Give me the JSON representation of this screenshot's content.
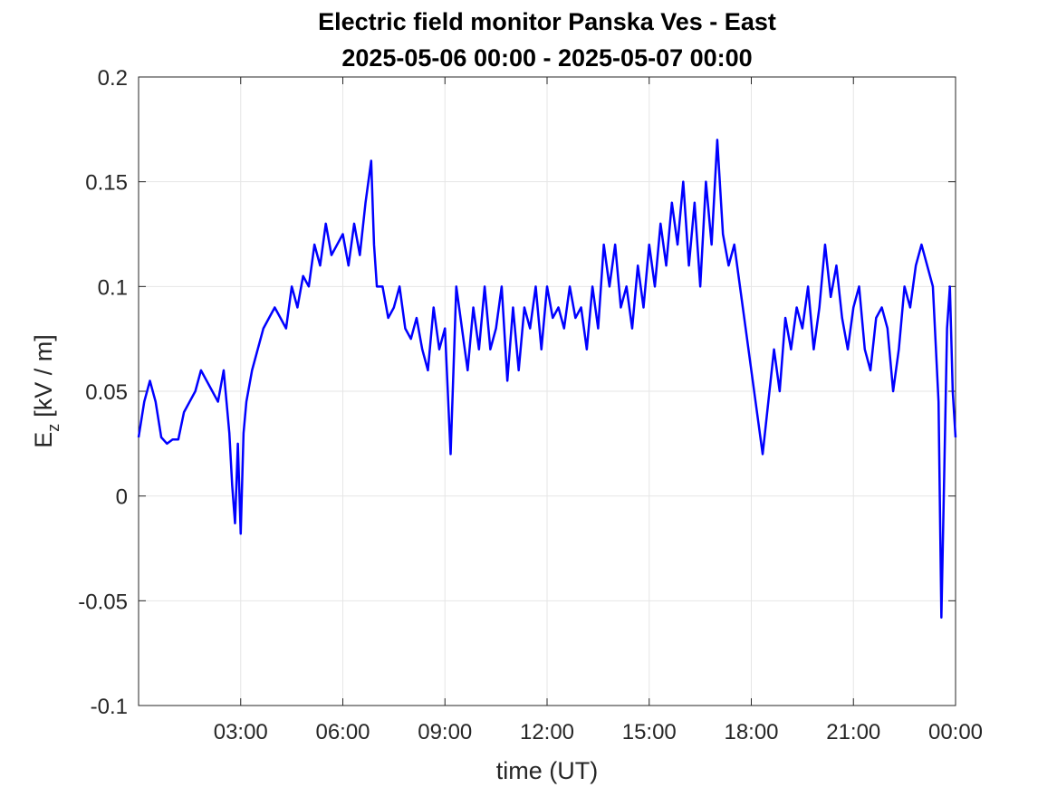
{
  "chart_data": {
    "type": "line",
    "title": "Electric field monitor Panska Ves - East",
    "subtitle": "2025-05-06 00:00 - 2025-05-07 00:00",
    "xlabel": "time (UT)",
    "ylabel": "E",
    "ylabel_sub": "z",
    "ylabel_unit": "[kV / m]",
    "xlim": [
      "2025-05-06 00:00",
      "2025-05-07 00:00"
    ],
    "ylim": [
      -0.1,
      0.2
    ],
    "grid": true,
    "line_color": "#0000ff",
    "xtick_labels": [
      "03:00",
      "06:00",
      "09:00",
      "12:00",
      "15:00",
      "18:00",
      "21:00",
      "00:00"
    ],
    "ytick_labels": [
      "-0.1",
      "-0.05",
      "0",
      "0.05",
      "0.1",
      "0.15",
      "0.2"
    ],
    "ytick_values": [
      -0.1,
      -0.05,
      0,
      0.05,
      0.1,
      0.15,
      0.2
    ],
    "series": [
      {
        "x": [
          "00:00",
          "00:10",
          "00:20",
          "00:30",
          "00:40",
          "00:50",
          "01:00",
          "01:10",
          "01:20",
          "01:30",
          "01:40",
          "01:50",
          "02:00",
          "02:10",
          "02:20",
          "02:30",
          "02:35",
          "02:40",
          "02:45",
          "02:50",
          "02:55",
          "03:00",
          "03:05",
          "03:10",
          "03:20",
          "03:30",
          "03:40",
          "03:50",
          "04:00",
          "04:10",
          "04:20",
          "04:30",
          "04:40",
          "04:50",
          "05:00",
          "05:10",
          "05:20",
          "05:30",
          "05:40",
          "05:50",
          "06:00",
          "06:10",
          "06:20",
          "06:30",
          "06:40",
          "06:50",
          "06:55",
          "07:00",
          "07:10",
          "07:20",
          "07:30",
          "07:40",
          "07:50",
          "08:00",
          "08:10",
          "08:20",
          "08:30",
          "08:40",
          "08:50",
          "09:00",
          "09:10",
          "09:20",
          "09:30",
          "09:40",
          "09:50",
          "10:00",
          "10:10",
          "10:20",
          "10:30",
          "10:40",
          "10:50",
          "11:00",
          "11:10",
          "11:20",
          "11:30",
          "11:40",
          "11:50",
          "12:00",
          "12:10",
          "12:20",
          "12:30",
          "12:40",
          "12:50",
          "13:00",
          "13:10",
          "13:20",
          "13:30",
          "13:40",
          "13:50",
          "14:00",
          "14:10",
          "14:20",
          "14:30",
          "14:40",
          "14:50",
          "15:00",
          "15:10",
          "15:20",
          "15:30",
          "15:40",
          "15:50",
          "16:00",
          "16:10",
          "16:20",
          "16:30",
          "16:40",
          "16:50",
          "17:00",
          "17:10",
          "17:20",
          "17:30",
          "17:40",
          "17:50",
          "18:00",
          "18:10",
          "18:20",
          "18:30",
          "18:40",
          "18:50",
          "19:00",
          "19:10",
          "19:20",
          "19:30",
          "19:40",
          "19:50",
          "20:00",
          "20:10",
          "20:20",
          "20:30",
          "20:40",
          "20:50",
          "21:00",
          "21:10",
          "21:20",
          "21:30",
          "21:40",
          "21:50",
          "22:00",
          "22:10",
          "22:20",
          "22:30",
          "22:40",
          "22:50",
          "23:00",
          "23:10",
          "23:20",
          "23:30",
          "23:35",
          "23:40",
          "23:45",
          "23:50",
          "23:55",
          "24:00"
        ],
        "values": [
          0.028,
          0.045,
          0.055,
          0.045,
          0.028,
          0.025,
          0.027,
          0.027,
          0.04,
          0.045,
          0.05,
          0.06,
          0.055,
          0.05,
          0.045,
          0.06,
          0.045,
          0.03,
          0.005,
          -0.013,
          0.025,
          -0.018,
          0.03,
          0.045,
          0.06,
          0.07,
          0.08,
          0.085,
          0.09,
          0.085,
          0.08,
          0.1,
          0.09,
          0.105,
          0.1,
          0.12,
          0.11,
          0.13,
          0.115,
          0.12,
          0.125,
          0.11,
          0.13,
          0.115,
          0.14,
          0.16,
          0.12,
          0.1,
          0.1,
          0.085,
          0.09,
          0.1,
          0.08,
          0.075,
          0.085,
          0.07,
          0.06,
          0.09,
          0.07,
          0.08,
          0.02,
          0.1,
          0.08,
          0.06,
          0.09,
          0.07,
          0.1,
          0.07,
          0.08,
          0.1,
          0.055,
          0.09,
          0.06,
          0.09,
          0.08,
          0.1,
          0.07,
          0.1,
          0.085,
          0.09,
          0.08,
          0.1,
          0.085,
          0.09,
          0.07,
          0.1,
          0.08,
          0.12,
          0.1,
          0.12,
          0.09,
          0.1,
          0.08,
          0.11,
          0.09,
          0.12,
          0.1,
          0.13,
          0.11,
          0.14,
          0.12,
          0.15,
          0.11,
          0.14,
          0.1,
          0.15,
          0.12,
          0.17,
          0.125,
          0.11,
          0.12,
          0.1,
          0.08,
          0.06,
          0.04,
          0.02,
          0.045,
          0.07,
          0.05,
          0.085,
          0.07,
          0.09,
          0.08,
          0.1,
          0.07,
          0.09,
          0.12,
          0.095,
          0.11,
          0.085,
          0.07,
          0.09,
          0.1,
          0.07,
          0.06,
          0.085,
          0.09,
          0.08,
          0.05,
          0.07,
          0.1,
          0.09,
          0.11,
          0.12,
          0.11,
          0.1,
          0.045,
          -0.058,
          0.01,
          0.08,
          0.1,
          0.05,
          0.028
        ]
      }
    ]
  }
}
